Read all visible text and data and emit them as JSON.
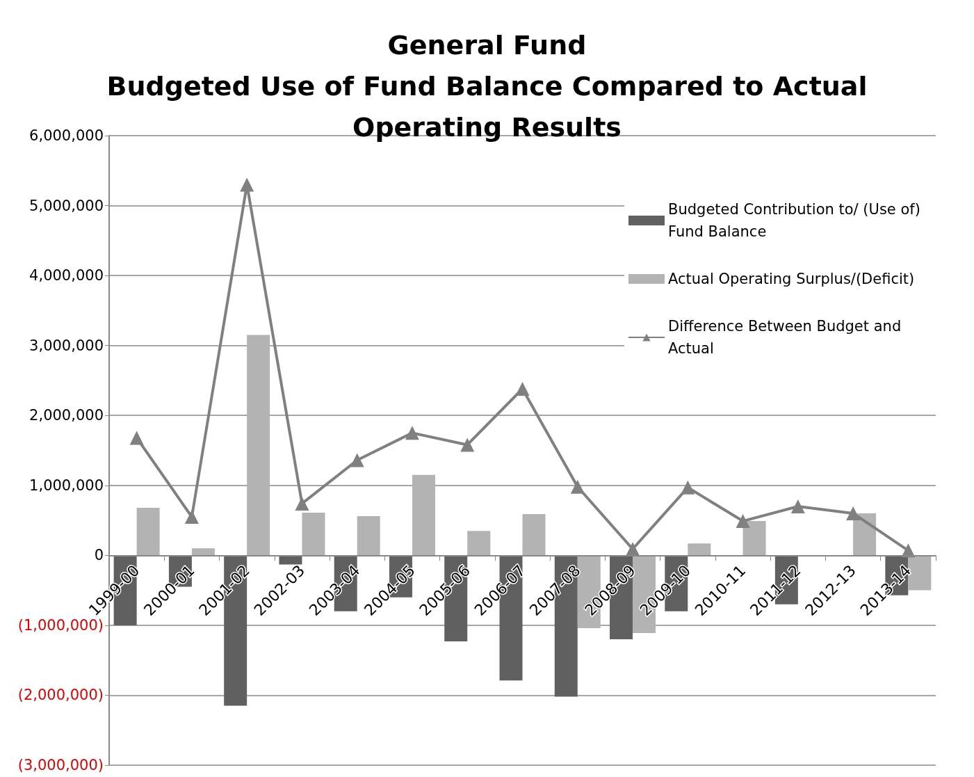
{
  "chart_data": {
    "type": "bar",
    "title": "General Fund\nBudgeted Use of Fund Balance Compared to Actual\nOperating Results",
    "categories": [
      "1999-00",
      "2000-01",
      "2001-02",
      "2002-03",
      "2003-04",
      "2004-05",
      "2005-06",
      "2006-07",
      "2007-08",
      "2008-09",
      "2009-10",
      "2010-11",
      "2011-12",
      "2012-13",
      "2013-14"
    ],
    "series": [
      {
        "name": "Budgeted Contribution to/ (Use of) Fund Balance",
        "color": "#606060",
        "values": [
          -1000000,
          -450000,
          -2150000,
          -130000,
          -800000,
          -600000,
          -1230000,
          -1790000,
          -2020000,
          -1200000,
          -800000,
          0,
          -700000,
          0,
          -570000
        ]
      },
      {
        "name": "Actual Operating Surplus/(Deficit)",
        "color": "#b3b3b3",
        "values": [
          680000,
          100000,
          3150000,
          610000,
          560000,
          1150000,
          350000,
          590000,
          -1040000,
          -1110000,
          170000,
          490000,
          0,
          600000,
          -500000
        ]
      },
      {
        "name": "Difference Between Budget and Actual",
        "type": "line",
        "color": "#808080",
        "marker": "triangle",
        "values": [
          1680000,
          550000,
          5300000,
          740000,
          1360000,
          1750000,
          1580000,
          2380000,
          980000,
          90000,
          970000,
          490000,
          700000,
          600000,
          70000
        ]
      }
    ],
    "ylim": [
      -3000000,
      6000000
    ],
    "yticks": [
      {
        "value": -3000000,
        "label": "(3,000,000)"
      },
      {
        "value": -2000000,
        "label": "(2,000,000)"
      },
      {
        "value": -1000000,
        "label": "(1,000,000)"
      },
      {
        "value": 0,
        "label": "0"
      },
      {
        "value": 1000000,
        "label": "1,000,000"
      },
      {
        "value": 2000000,
        "label": "2,000,000"
      },
      {
        "value": 3000000,
        "label": "3,000,000"
      },
      {
        "value": 4000000,
        "label": "4,000,000"
      },
      {
        "value": 5000000,
        "label": "5,000,000"
      },
      {
        "value": 6000000,
        "label": "6,000,000"
      }
    ],
    "grid": "y",
    "legend": "top right"
  }
}
